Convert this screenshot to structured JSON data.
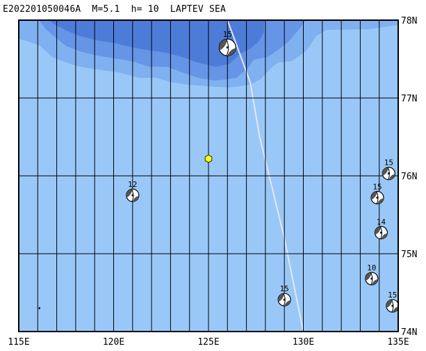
{
  "title": "E202201050046A  M=5.1  h= 10  LAPTEV SEA",
  "map": {
    "lon_range": [
      115,
      135
    ],
    "lat_range": [
      74,
      78
    ],
    "lon_labels": [
      "115E",
      "120E",
      "125E",
      "130E",
      "135E"
    ],
    "lat_labels": [
      "74N",
      "75N",
      "76N",
      "77N",
      "78N"
    ],
    "colors": {
      "shallow": "#99c8f8",
      "medium": "#7fb0f0",
      "deep": "#6694e6",
      "deepest": "#4d7cd8",
      "epicenter": "#ffff00",
      "plate_boundary": "#e6e6f5"
    }
  },
  "epicenter": {
    "lon": 125.0,
    "lat": 76.22,
    "icon": "yellow-hexagon"
  },
  "plate_boundary": [
    [
      126.0,
      78.0
    ],
    [
      127.2,
      77.2
    ],
    [
      127.7,
      76.5
    ],
    [
      128.4,
      75.8
    ],
    [
      129.0,
      75.2
    ],
    [
      129.5,
      74.6
    ],
    [
      130.0,
      74.0
    ]
  ],
  "events": [
    {
      "lon": 126.0,
      "lat": 77.65,
      "mag": "15",
      "size": "large"
    },
    {
      "lon": 121.0,
      "lat": 75.75,
      "mag": "12",
      "size": "medium"
    },
    {
      "lon": 134.5,
      "lat": 76.03,
      "mag": "15",
      "size": "medium"
    },
    {
      "lon": 133.9,
      "lat": 75.72,
      "mag": "15",
      "size": "medium"
    },
    {
      "lon": 134.1,
      "lat": 75.27,
      "mag": "14",
      "size": "medium"
    },
    {
      "lon": 133.6,
      "lat": 74.68,
      "mag": "10",
      "size": "medium"
    },
    {
      "lon": 129.0,
      "lat": 74.41,
      "mag": "15",
      "size": "medium"
    },
    {
      "lon": 134.7,
      "lat": 74.33,
      "mag": "15",
      "size": "medium"
    }
  ],
  "island": {
    "lon": 116.1,
    "lat": 74.3
  }
}
